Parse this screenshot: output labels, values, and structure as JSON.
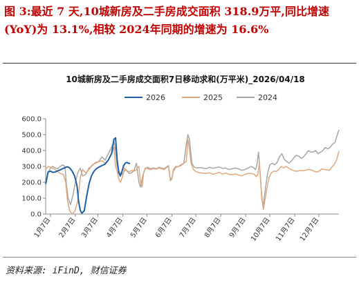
{
  "heading": "图 3:最近 7 天,10城新房及二手房成交面积 318.9万平,同比增速(YoY)为 13.1%,相较 2024年同期的增速为 16.6%",
  "source": "资料来源: iFinD, 财信证券",
  "colors": {
    "s2026": "#1f5fa8",
    "s2025": "#e0a77e",
    "s2024": "#a6a6a6",
    "axis": "#888888"
  },
  "chart_data": {
    "type": "line",
    "title": "10城新房及二手房成交面积7日移动求和(万平米)_2026/04/18",
    "x_tick_labels": [
      "1月7日",
      "2月7日",
      "3月7日",
      "4月7日",
      "5月7日",
      "6月7日",
      "7月7日",
      "8月7日",
      "9月7日",
      "10月7日",
      "11月7日",
      "12月7日"
    ],
    "y_tick_labels": [
      "0.0",
      "100.0",
      "200.0",
      "300.0",
      "400.0",
      "500.0",
      "600.0"
    ],
    "ylim": [
      0,
      600
    ],
    "x_unit": "day_of_year",
    "xlim": [
      0,
      365
    ],
    "series": [
      {
        "name": "2026",
        "color_key": "s2026",
        "points": [
          [
            0,
            190
          ],
          [
            3,
            265
          ],
          [
            6,
            270
          ],
          [
            9,
            262
          ],
          [
            12,
            265
          ],
          [
            15,
            272
          ],
          [
            18,
            278
          ],
          [
            21,
            285
          ],
          [
            24,
            292
          ],
          [
            27,
            298
          ],
          [
            30,
            290
          ],
          [
            33,
            270
          ],
          [
            36,
            240
          ],
          [
            39,
            180
          ],
          [
            41,
            80
          ],
          [
            43,
            25
          ],
          [
            45,
            5
          ],
          [
            48,
            20
          ],
          [
            51,
            110
          ],
          [
            54,
            190
          ],
          [
            57,
            240
          ],
          [
            60,
            268
          ],
          [
            63,
            285
          ],
          [
            66,
            295
          ],
          [
            70,
            305
          ],
          [
            74,
            315
          ],
          [
            78,
            340
          ],
          [
            82,
            380
          ],
          [
            85,
            470
          ],
          [
            87,
            480
          ],
          [
            89,
            340
          ],
          [
            91,
            260
          ],
          [
            93,
            240
          ],
          [
            95,
            270
          ],
          [
            97,
            305
          ],
          [
            99,
            320
          ],
          [
            101,
            325
          ],
          [
            103,
            320
          ],
          [
            105,
            318
          ]
        ]
      },
      {
        "name": "2025",
        "color_key": "s2025",
        "points": [
          [
            0,
            280
          ],
          [
            3,
            300
          ],
          [
            6,
            295
          ],
          [
            10,
            285
          ],
          [
            14,
            270
          ],
          [
            18,
            255
          ],
          [
            22,
            250
          ],
          [
            25,
            200
          ],
          [
            27,
            90
          ],
          [
            30,
            20
          ],
          [
            33,
            0
          ],
          [
            36,
            15
          ],
          [
            40,
            80
          ],
          [
            43,
            230
          ],
          [
            46,
            280
          ],
          [
            50,
            260
          ],
          [
            54,
            280
          ],
          [
            58,
            310
          ],
          [
            62,
            320
          ],
          [
            66,
            330
          ],
          [
            70,
            335
          ],
          [
            74,
            320
          ],
          [
            78,
            340
          ],
          [
            82,
            380
          ],
          [
            85,
            420
          ],
          [
            87,
            300
          ],
          [
            89,
            270
          ],
          [
            91,
            220
          ],
          [
            93,
            200
          ],
          [
            96,
            240
          ],
          [
            98,
            290
          ],
          [
            100,
            280
          ],
          [
            102,
            265
          ],
          [
            105,
            270
          ],
          [
            108,
            275
          ],
          [
            110,
            270
          ],
          [
            113,
            280
          ],
          [
            116,
            300
          ],
          [
            118,
            200
          ],
          [
            120,
            170
          ],
          [
            122,
            260
          ],
          [
            124,
            290
          ],
          [
            127,
            285
          ],
          [
            130,
            280
          ],
          [
            134,
            285
          ],
          [
            138,
            283
          ],
          [
            141,
            290
          ],
          [
            144,
            285
          ],
          [
            147,
            280
          ],
          [
            150,
            290
          ],
          [
            153,
            300
          ],
          [
            155,
            210
          ],
          [
            157,
            220
          ],
          [
            159,
            280
          ],
          [
            162,
            300
          ],
          [
            165,
            298
          ],
          [
            168,
            310
          ],
          [
            172,
            320
          ],
          [
            175,
            330
          ],
          [
            177,
            470
          ],
          [
            178,
            440
          ],
          [
            181,
            320
          ],
          [
            184,
            280
          ],
          [
            188,
            265
          ],
          [
            192,
            260
          ],
          [
            196,
            258
          ],
          [
            200,
            255
          ],
          [
            204,
            260
          ],
          [
            208,
            250
          ],
          [
            212,
            255
          ],
          [
            216,
            262
          ],
          [
            220,
            252
          ],
          [
            224,
            258
          ],
          [
            228,
            250
          ],
          [
            232,
            248
          ],
          [
            236,
            252
          ],
          [
            240,
            246
          ],
          [
            244,
            240
          ],
          [
            248,
            250
          ],
          [
            252,
            255
          ],
          [
            256,
            255
          ],
          [
            260,
            250
          ],
          [
            262,
            235
          ],
          [
            264,
            250
          ],
          [
            266,
            320
          ],
          [
            268,
            180
          ],
          [
            270,
            60
          ],
          [
            271,
            30
          ],
          [
            273,
            90
          ],
          [
            275,
            150
          ],
          [
            278,
            230
          ],
          [
            281,
            260
          ],
          [
            284,
            270
          ],
          [
            287,
            268
          ],
          [
            290,
            280
          ],
          [
            293,
            300
          ],
          [
            296,
            290
          ],
          [
            299,
            300
          ],
          [
            302,
            290
          ],
          [
            305,
            280
          ],
          [
            308,
            275
          ],
          [
            311,
            270
          ],
          [
            314,
            270
          ],
          [
            317,
            275
          ],
          [
            320,
            272
          ],
          [
            323,
            275
          ],
          [
            326,
            280
          ],
          [
            329,
            280
          ],
          [
            332,
            275
          ],
          [
            335,
            268
          ],
          [
            338,
            265
          ],
          [
            341,
            272
          ],
          [
            344,
            285
          ],
          [
            347,
            280
          ],
          [
            350,
            278
          ],
          [
            353,
            275
          ],
          [
            356,
            295
          ],
          [
            359,
            310
          ],
          [
            362,
            340
          ],
          [
            365,
            395
          ]
        ]
      },
      {
        "name": "2024",
        "color_key": "s2024",
        "points": [
          [
            0,
            180
          ],
          [
            3,
            260
          ],
          [
            6,
            290
          ],
          [
            9,
            300
          ],
          [
            12,
            290
          ],
          [
            15,
            285
          ],
          [
            18,
            300
          ],
          [
            21,
            310
          ],
          [
            24,
            300
          ],
          [
            26,
            180
          ],
          [
            28,
            100
          ],
          [
            31,
            60
          ],
          [
            34,
            120
          ],
          [
            37,
            200
          ],
          [
            40,
            260
          ],
          [
            43,
            290
          ],
          [
            46,
            240
          ],
          [
            50,
            250
          ],
          [
            54,
            290
          ],
          [
            58,
            305
          ],
          [
            62,
            325
          ],
          [
            66,
            330
          ],
          [
            70,
            360
          ],
          [
            74,
            340
          ],
          [
            78,
            380
          ],
          [
            82,
            420
          ],
          [
            85,
            460
          ],
          [
            87,
            400
          ],
          [
            89,
            300
          ],
          [
            92,
            260
          ],
          [
            95,
            250
          ],
          [
            98,
            270
          ],
          [
            100,
            280
          ],
          [
            102,
            270
          ],
          [
            104,
            255
          ],
          [
            107,
            260
          ],
          [
            110,
            275
          ],
          [
            113,
            320
          ],
          [
            116,
            200
          ],
          [
            118,
            170
          ],
          [
            121,
            245
          ],
          [
            124,
            285
          ],
          [
            127,
            295
          ],
          [
            130,
            285
          ],
          [
            134,
            290
          ],
          [
            138,
            285
          ],
          [
            141,
            295
          ],
          [
            144,
            290
          ],
          [
            147,
            285
          ],
          [
            150,
            295
          ],
          [
            153,
            305
          ],
          [
            155,
            220
          ],
          [
            157,
            225
          ],
          [
            159,
            270
          ],
          [
            162,
            295
          ],
          [
            165,
            300
          ],
          [
            168,
            305
          ],
          [
            172,
            320
          ],
          [
            175,
            440
          ],
          [
            177,
            500
          ],
          [
            179,
            470
          ],
          [
            182,
            320
          ],
          [
            185,
            295
          ],
          [
            188,
            290
          ],
          [
            192,
            292
          ],
          [
            196,
            290
          ],
          [
            200,
            285
          ],
          [
            204,
            295
          ],
          [
            208,
            288
          ],
          [
            212,
            292
          ],
          [
            216,
            296
          ],
          [
            220,
            288
          ],
          [
            224,
            290
          ],
          [
            228,
            280
          ],
          [
            232,
            285
          ],
          [
            236,
            290
          ],
          [
            240,
            285
          ],
          [
            244,
            275
          ],
          [
            248,
            280
          ],
          [
            252,
            290
          ],
          [
            256,
            300
          ],
          [
            259,
            290
          ],
          [
            261,
            280
          ],
          [
            263,
            310
          ],
          [
            265,
            390
          ],
          [
            267,
            250
          ],
          [
            269,
            90
          ],
          [
            271,
            60
          ],
          [
            273,
            140
          ],
          [
            276,
            250
          ],
          [
            279,
            310
          ],
          [
            282,
            320
          ],
          [
            285,
            310
          ],
          [
            288,
            325
          ],
          [
            291,
            360
          ],
          [
            294,
            380
          ],
          [
            297,
            345
          ],
          [
            300,
            330
          ],
          [
            303,
            320
          ],
          [
            306,
            335
          ],
          [
            309,
            355
          ],
          [
            312,
            370
          ],
          [
            315,
            365
          ],
          [
            318,
            350
          ],
          [
            321,
            360
          ],
          [
            324,
            380
          ],
          [
            327,
            400
          ],
          [
            330,
            390
          ],
          [
            333,
            390
          ],
          [
            336,
            400
          ],
          [
            339,
            380
          ],
          [
            342,
            390
          ],
          [
            345,
            400
          ],
          [
            348,
            420
          ],
          [
            351,
            410
          ],
          [
            354,
            420
          ],
          [
            357,
            440
          ],
          [
            360,
            450
          ],
          [
            363,
            500
          ],
          [
            365,
            530
          ]
        ]
      }
    ]
  }
}
